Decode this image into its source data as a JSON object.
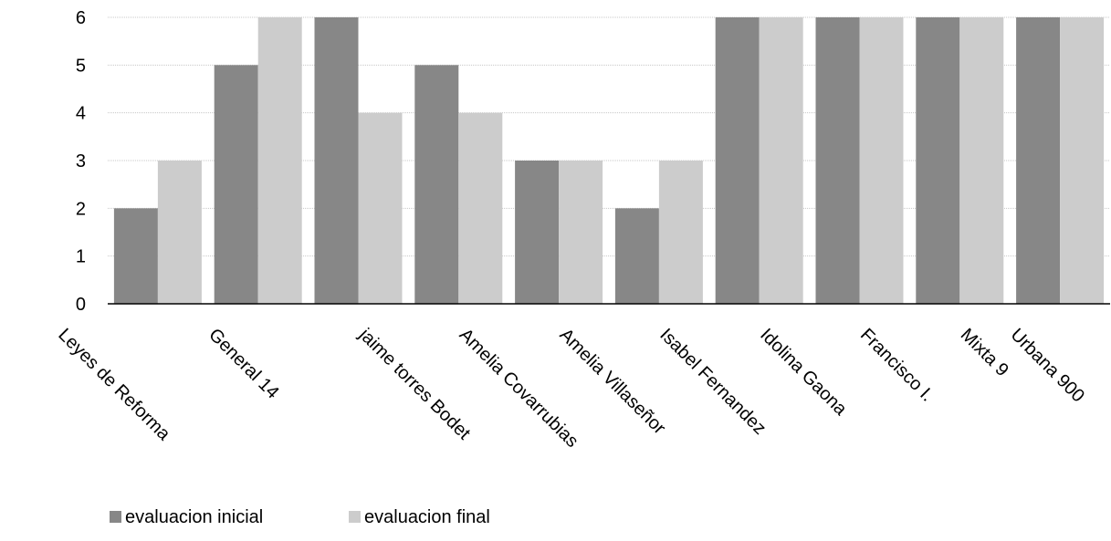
{
  "chart_data": {
    "type": "bar",
    "categories": [
      "Leyes de Reforma",
      "General 14",
      "jaime torres Bodet",
      "Amelia Covarrubias",
      "Amelia Villaseñor",
      "Isabel Fernandez",
      "Idolina Gaona",
      "Francisco I.",
      "Mixta 9",
      "Urbana 900"
    ],
    "series": [
      {
        "name": "evaluacion inicial",
        "values": [
          2,
          5,
          6,
          5,
          3,
          2,
          6,
          6,
          6,
          6
        ],
        "color": "#878787"
      },
      {
        "name": "evaluacion final",
        "values": [
          3,
          6,
          4,
          4,
          3,
          3,
          6,
          6,
          6,
          6
        ],
        "color": "#cccccc"
      }
    ],
    "ylim": [
      0,
      6
    ],
    "yticks": [
      0,
      1,
      2,
      3,
      4,
      5,
      6
    ],
    "grid": true,
    "legend": "bottom-left",
    "title": "",
    "xlabel": "",
    "ylabel": ""
  }
}
